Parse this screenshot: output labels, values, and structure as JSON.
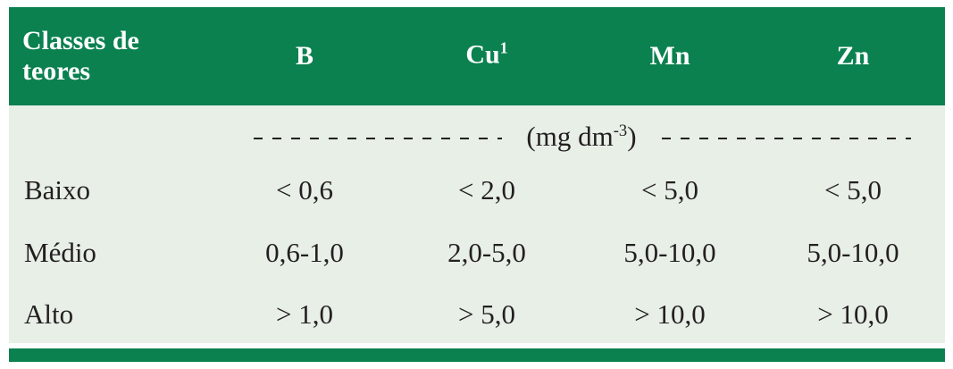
{
  "table": {
    "header": [
      {
        "text": "Classes de teores"
      },
      {
        "text": "B"
      },
      {
        "text": "Cu",
        "sup": "1"
      },
      {
        "text": "Mn"
      },
      {
        "text": "Zn"
      }
    ],
    "unit": {
      "text": "(mg dm",
      "sup": "-3",
      "close": ")"
    },
    "rows": [
      [
        "Baixo",
        "< 0,6",
        "< 2,0",
        "< 5,0",
        "< 5,0"
      ],
      [
        "Médio",
        "0,6-1,0",
        "2,0-5,0",
        "5,0-10,0",
        "5,0-10,0"
      ],
      [
        "Alto",
        "> 1,0",
        "> 5,0",
        "> 10,0",
        "> 10,0"
      ]
    ]
  }
}
